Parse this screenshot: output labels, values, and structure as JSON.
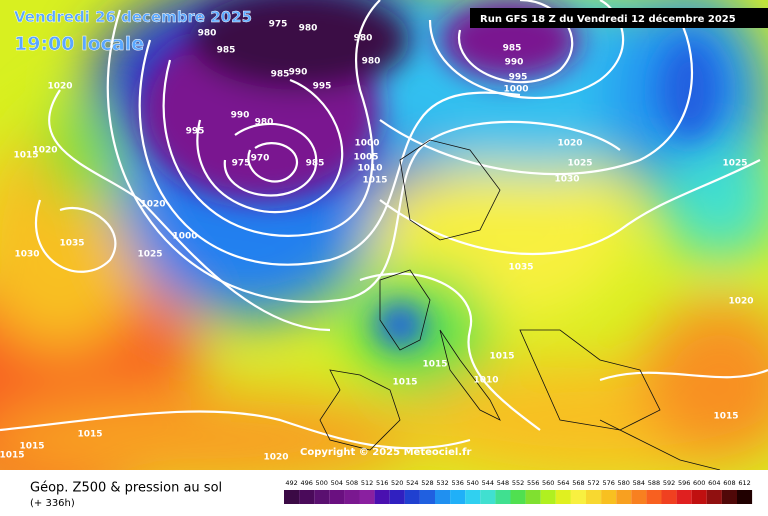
{
  "valid_date": "Vendredi 26 decembre 2025",
  "valid_time": "19:00 locale",
  "run_info": "Run GFS 18 Z du Vendredi 12 décembre 2025",
  "copyright": "Copyright © 2025 Meteociel.fr",
  "title": "Géop. Z500 & pression au sol",
  "forecast_range": "(+ 336h)",
  "isobar_labels": [
    975,
    980,
    985,
    980,
    980,
    980,
    985,
    990,
    995,
    990,
    995,
    980,
    970,
    975,
    985,
    1000,
    1005,
    1010,
    1015,
    1020,
    1000,
    1025,
    1035,
    1030,
    1020,
    1015,
    1020,
    985,
    990,
    995,
    1000,
    1020,
    1025,
    1030,
    1025,
    1035,
    1020,
    1015,
    1015,
    1010,
    1015,
    1015,
    1015,
    1015,
    1015,
    1020
  ],
  "colorbar": {
    "values": [
      492,
      496,
      500,
      504,
      508,
      512,
      516,
      520,
      524,
      528,
      532,
      536,
      540,
      544,
      548,
      552,
      556,
      560,
      564,
      568,
      572,
      576,
      580,
      584,
      588,
      592,
      596,
      600,
      604,
      608,
      612
    ],
    "colors": [
      "#3b0a45",
      "#4a0a5a",
      "#5a1070",
      "#6a1080",
      "#7a1890",
      "#8a20a0",
      "#4a10b0",
      "#3020c0",
      "#2040d0",
      "#2060e0",
      "#2090f0",
      "#20b0f8",
      "#30d0f0",
      "#40e0d0",
      "#40e090",
      "#50e050",
      "#80e030",
      "#b0f020",
      "#e0f020",
      "#f8f040",
      "#f8d830",
      "#f8c020",
      "#f8a020",
      "#f88020",
      "#f86020",
      "#f04020",
      "#e02020",
      "#c01010",
      "#901010",
      "#500808",
      "#200000"
    ]
  }
}
